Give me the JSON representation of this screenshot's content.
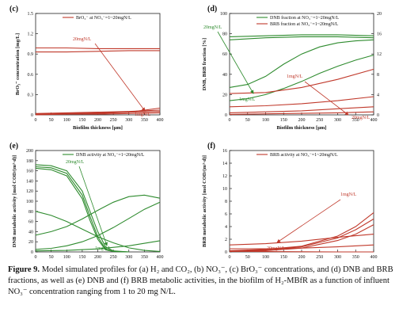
{
  "caption": {
    "label": "Figure 9.",
    "text": "Model simulated profiles for (a) H₂ and CO₂, (b) NO₃⁻, (c) BrO₃⁻ concentrations, and (d) DNB and BRB fractions, as well as (e) DNB and (f) BRB metabolic activities, in the biofilm of H₂-MBfR as a function of influent NO₃⁻ concentration ranging from 1 to 20 mg N/L."
  },
  "colors": {
    "red": "#c0392b",
    "green": "#2e8b2e",
    "axis": "#222222"
  },
  "chart_data": [
    {
      "panel": "(c)",
      "type": "line",
      "xlabel": "Biofilm thickness [μm]",
      "ylabel": "BrO₃⁻ concentration [mg/L]",
      "xlim": [
        0,
        400
      ],
      "ylim": [
        0,
        1.5
      ],
      "xticks": [
        0,
        50,
        100,
        150,
        200,
        250,
        300,
        350,
        400
      ],
      "yticks": [
        0,
        0.3,
        0.6,
        0.9,
        1.2,
        1.5
      ],
      "legend": "BrO₃⁻ at NO₃⁻=1~20mgN/L",
      "annotations": [
        "20mgN/L",
        "1mgN/L"
      ],
      "series": [
        {
          "color": "red",
          "x": [
            0,
            100,
            200,
            300,
            400
          ],
          "y": [
            0.99,
            0.99,
            0.98,
            0.98,
            0.98
          ]
        },
        {
          "color": "red",
          "x": [
            0,
            100,
            200,
            300,
            400
          ],
          "y": [
            0.93,
            0.93,
            0.94,
            0.95,
            0.95
          ]
        },
        {
          "color": "red",
          "x": [
            0,
            100,
            200,
            300,
            400
          ],
          "y": [
            0.01,
            0.01,
            0.02,
            0.04,
            0.1
          ]
        },
        {
          "color": "red",
          "x": [
            0,
            100,
            200,
            300,
            400
          ],
          "y": [
            0.02,
            0.03,
            0.04,
            0.05,
            0.07
          ]
        },
        {
          "color": "red",
          "x": [
            0,
            100,
            200,
            300,
            400
          ],
          "y": [
            0.01,
            0.02,
            0.03,
            0.04,
            0.05
          ]
        },
        {
          "color": "red",
          "x": [
            0,
            100,
            200,
            300,
            400
          ],
          "y": [
            0.0,
            0.01,
            0.01,
            0.02,
            0.03
          ]
        }
      ]
    },
    {
      "panel": "(d)",
      "type": "line",
      "xlabel": "Biofilm thickness [μm]",
      "ylabel": "DNB, BRB fraction [%]",
      "xlim": [
        0,
        400
      ],
      "ylim": [
        0,
        100
      ],
      "y2lim": [
        0,
        20
      ],
      "xticks": [
        0,
        50,
        100,
        150,
        200,
        250,
        300,
        350,
        400
      ],
      "yticks": [
        0,
        20,
        40,
        60,
        80,
        100
      ],
      "y2ticks": [
        0,
        4,
        8,
        12,
        16,
        20
      ],
      "legend": [
        "DNB fraction at NO₃⁻=1~20mgN/L",
        "BRB fraction at NO₃⁻=1~20mgN/L"
      ],
      "annotations": [
        "20mgN/L",
        "1mgN/L",
        "1mgN/L",
        "20mgN/L"
      ],
      "series": [
        {
          "name": "DNB fraction at NO₃⁻=1~20mgN/L",
          "color": "green",
          "x": [
            0,
            100,
            200,
            300,
            400
          ],
          "y": [
            74,
            76,
            77,
            77,
            76
          ]
        },
        {
          "name": "",
          "color": "green",
          "x": [
            0,
            100,
            200,
            300,
            400
          ],
          "y": [
            77,
            78,
            79,
            79,
            78
          ]
        },
        {
          "name": "",
          "color": "green",
          "x": [
            0,
            50,
            100,
            150,
            200,
            250,
            300,
            350,
            400
          ],
          "y": [
            27,
            30,
            38,
            50,
            60,
            67,
            71,
            73,
            74
          ]
        },
        {
          "name": "",
          "color": "green",
          "x": [
            0,
            50,
            100,
            150,
            200,
            250,
            300,
            350,
            400
          ],
          "y": [
            14,
            16,
            20,
            26,
            33,
            41,
            48,
            54,
            59
          ]
        },
        {
          "name": "BRB fraction at NO₃⁻=1~20mgN/L",
          "color": "red",
          "x": [
            0,
            100,
            200,
            300,
            400
          ],
          "y": [
            21,
            22,
            27,
            35,
            45
          ]
        },
        {
          "name": "",
          "color": "red",
          "x": [
            0,
            100,
            200,
            300,
            400
          ],
          "y": [
            8,
            9,
            11,
            14,
            18
          ]
        },
        {
          "name": "",
          "color": "red",
          "x": [
            0,
            100,
            200,
            300,
            400
          ],
          "y": [
            2,
            3,
            4,
            6,
            8
          ]
        },
        {
          "name": "",
          "color": "red",
          "x": [
            0,
            100,
            200,
            300,
            400
          ],
          "y": [
            0.5,
            1,
            1.5,
            2,
            3
          ]
        }
      ]
    },
    {
      "panel": "(e)",
      "type": "line",
      "xlabel": "Biofilm thickness [μm]",
      "ylabel": "DNB metabolic activity [mol COD/(m³·d)]",
      "xlim": [
        0,
        400
      ],
      "ylim": [
        0,
        200
      ],
      "xticks": [
        0,
        50,
        100,
        150,
        200,
        250,
        300,
        350,
        400
      ],
      "yticks": [
        0,
        20,
        40,
        60,
        80,
        100,
        120,
        140,
        160,
        180,
        200
      ],
      "legend": "DNB activity at NO₃⁻=1~20mgN/L",
      "annotations": [
        "20mgN/L",
        "1mgN/L"
      ],
      "series": [
        {
          "color": "green",
          "x": [
            0,
            50,
            100,
            150,
            175,
            200,
            225,
            250,
            300
          ],
          "y": [
            172,
            170,
            160,
            120,
            80,
            40,
            10,
            2,
            0
          ]
        },
        {
          "color": "green",
          "x": [
            0,
            50,
            100,
            150,
            175,
            200,
            225,
            250,
            300
          ],
          "y": [
            168,
            166,
            155,
            112,
            70,
            30,
            6,
            1,
            0
          ]
        },
        {
          "color": "green",
          "x": [
            0,
            50,
            100,
            150,
            175,
            200,
            225,
            250,
            300
          ],
          "y": [
            165,
            162,
            150,
            105,
            62,
            25,
            4,
            1,
            0
          ]
        },
        {
          "color": "green",
          "x": [
            0,
            50,
            100,
            150,
            200,
            250,
            300,
            350,
            400
          ],
          "y": [
            80,
            72,
            60,
            45,
            30,
            18,
            8,
            3,
            1
          ]
        },
        {
          "color": "green",
          "x": [
            0,
            50,
            100,
            150,
            200,
            250,
            300,
            350,
            400
          ],
          "y": [
            33,
            40,
            50,
            65,
            82,
            98,
            109,
            112,
            106
          ]
        },
        {
          "color": "green",
          "x": [
            0,
            50,
            100,
            150,
            200,
            250,
            300,
            350,
            400
          ],
          "y": [
            5,
            7,
            12,
            20,
            32,
            48,
            66,
            84,
            98
          ]
        },
        {
          "color": "green",
          "x": [
            0,
            100,
            200,
            300,
            400
          ],
          "y": [
            2,
            3,
            6,
            12,
            22
          ]
        }
      ]
    },
    {
      "panel": "(f)",
      "type": "line",
      "xlabel": "Biofilm thickness [μm]",
      "ylabel": "BRB metabolic activity [mol COD/(m³·d)]",
      "xlim": [
        0,
        400
      ],
      "ylim": [
        0,
        16
      ],
      "xticks": [
        0,
        50,
        100,
        150,
        200,
        250,
        300,
        350,
        400
      ],
      "yticks": [
        0,
        2,
        4,
        6,
        8,
        10,
        12,
        14,
        16
      ],
      "legend": "BRB activity at NO₃⁻=1~20mgN/L",
      "annotations": [
        "1mgN/L",
        "20mgN/L"
      ],
      "series": [
        {
          "color": "red",
          "x": [
            0,
            100,
            200,
            300,
            350,
            400
          ],
          "y": [
            0.2,
            0.4,
            0.9,
            2.5,
            4.0,
            6.2
          ]
        },
        {
          "color": "red",
          "x": [
            0,
            100,
            200,
            300,
            350,
            400
          ],
          "y": [
            0.1,
            0.3,
            0.8,
            2.2,
            3.5,
            5.2
          ]
        },
        {
          "color": "red",
          "x": [
            0,
            100,
            200,
            300,
            350,
            400
          ],
          "y": [
            0.05,
            0.2,
            0.6,
            1.8,
            2.8,
            4.3
          ]
        },
        {
          "color": "red",
          "x": [
            0,
            100,
            200,
            300,
            400
          ],
          "y": [
            1.1,
            1.3,
            1.7,
            2.3,
            2.8
          ]
        },
        {
          "color": "red",
          "x": [
            0,
            100,
            200,
            300,
            400
          ],
          "y": [
            0.5,
            0.5,
            0.6,
            0.8,
            1.1
          ]
        },
        {
          "color": "red",
          "x": [
            0,
            100,
            200,
            300,
            400
          ],
          "y": [
            0.1,
            0.05,
            0.02,
            0.0,
            0.0
          ]
        }
      ]
    }
  ]
}
